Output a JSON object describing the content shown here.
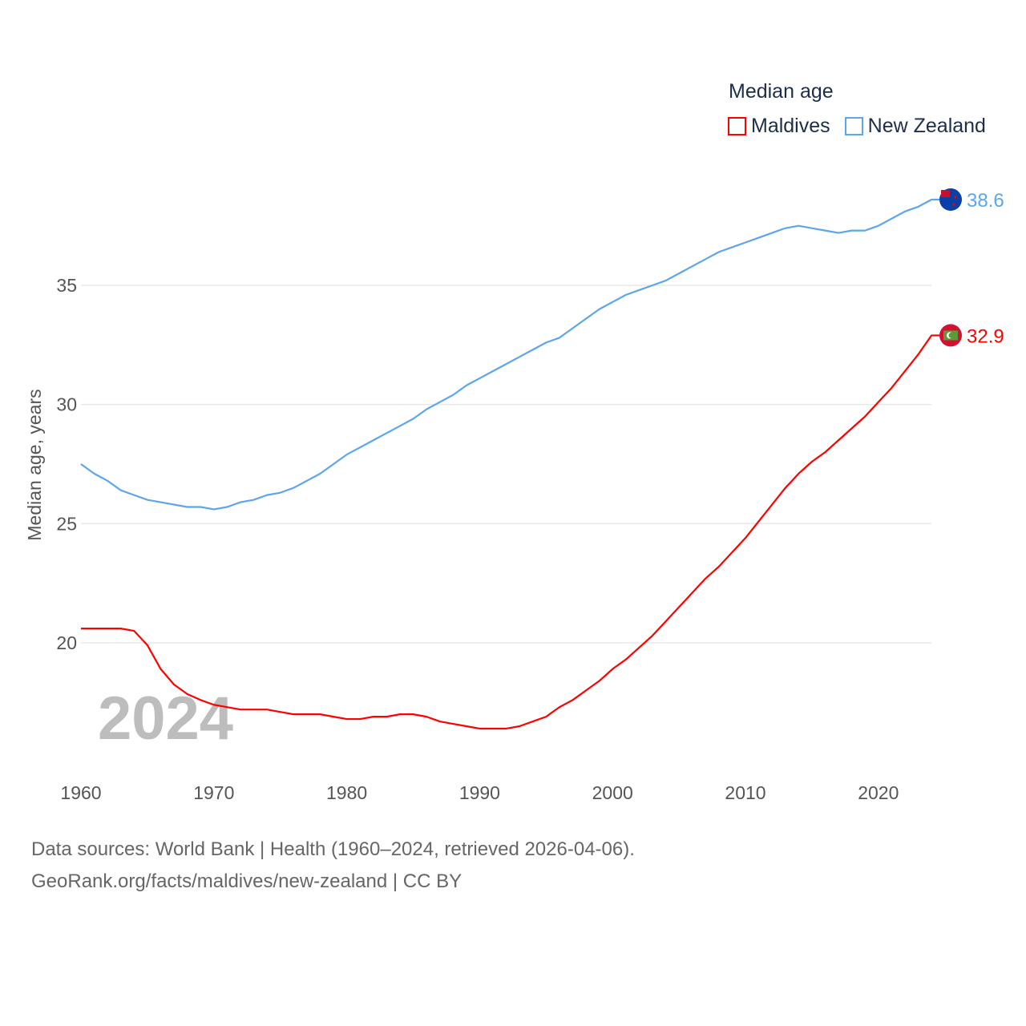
{
  "legend": {
    "title": "Median age",
    "items": [
      "Maldives",
      "New Zealand"
    ]
  },
  "colors": {
    "Maldives": "#ff0000",
    "New Zealand": "#5da5ec"
  },
  "year_watermark": "2024",
  "footer": {
    "line1": "Data sources: World Bank | Health (1960–2024, retrieved 2026-04-06).",
    "line2": "GeoRank.org/facts/maldives/new-zealand | CC BY"
  },
  "chart_data": {
    "type": "line",
    "title": "Median age",
    "xlabel": "",
    "ylabel": "Median age, years",
    "x_ticks": [
      1960,
      1970,
      1980,
      1990,
      2000,
      2010,
      2020
    ],
    "y_ticks": [
      20,
      25,
      30,
      35
    ],
    "grid": true,
    "legend_position": "top-right",
    "x": [
      1960,
      1961,
      1962,
      1963,
      1964,
      1965,
      1966,
      1967,
      1968,
      1969,
      1970,
      1971,
      1972,
      1973,
      1974,
      1975,
      1976,
      1977,
      1978,
      1979,
      1980,
      1981,
      1982,
      1983,
      1984,
      1985,
      1986,
      1987,
      1988,
      1989,
      1990,
      1991,
      1992,
      1993,
      1994,
      1995,
      1996,
      1997,
      1998,
      1999,
      2000,
      2001,
      2002,
      2003,
      2004,
      2005,
      2006,
      2007,
      2008,
      2009,
      2010,
      2011,
      2012,
      2013,
      2014,
      2015,
      2016,
      2017,
      2018,
      2019,
      2020,
      2021,
      2022,
      2023,
      2024
    ],
    "series": [
      {
        "name": "Maldives",
        "end_label": "32.9",
        "values": [
          20.6,
          20.6,
          20.6,
          20.6,
          20.5,
          19.9,
          18.9,
          18.25,
          17.85,
          17.6,
          17.4,
          17.3,
          17.2,
          17.2,
          17.2,
          17.1,
          17.0,
          17.0,
          17.0,
          16.9,
          16.8,
          16.8,
          16.9,
          16.9,
          17.0,
          17.0,
          16.9,
          16.7,
          16.6,
          16.5,
          16.4,
          16.4,
          16.4,
          16.5,
          16.7,
          16.9,
          17.3,
          17.6,
          18.0,
          18.4,
          18.9,
          19.3,
          19.8,
          20.3,
          20.9,
          21.5,
          22.1,
          22.7,
          23.2,
          23.8,
          24.4,
          25.1,
          25.8,
          26.5,
          27.1,
          27.6,
          28.0,
          28.5,
          29.0,
          29.5,
          30.1,
          30.7,
          31.4,
          32.1,
          32.9
        ]
      },
      {
        "name": "New Zealand",
        "end_label": "38.6",
        "values": [
          27.5,
          27.1,
          26.8,
          26.4,
          26.2,
          26.0,
          25.9,
          25.8,
          25.7,
          25.7,
          25.6,
          25.7,
          25.9,
          26.0,
          26.2,
          26.3,
          26.5,
          26.8,
          27.1,
          27.5,
          27.9,
          28.2,
          28.5,
          28.8,
          29.1,
          29.4,
          29.8,
          30.1,
          30.4,
          30.8,
          31.1,
          31.4,
          31.7,
          32.0,
          32.3,
          32.6,
          32.8,
          33.2,
          33.6,
          34.0,
          34.3,
          34.6,
          34.8,
          35.0,
          35.2,
          35.5,
          35.8,
          36.1,
          36.4,
          36.6,
          36.8,
          37.0,
          37.2,
          37.4,
          37.5,
          37.4,
          37.3,
          37.2,
          37.3,
          37.3,
          37.5,
          37.8,
          38.1,
          38.3,
          38.6
        ]
      }
    ]
  }
}
